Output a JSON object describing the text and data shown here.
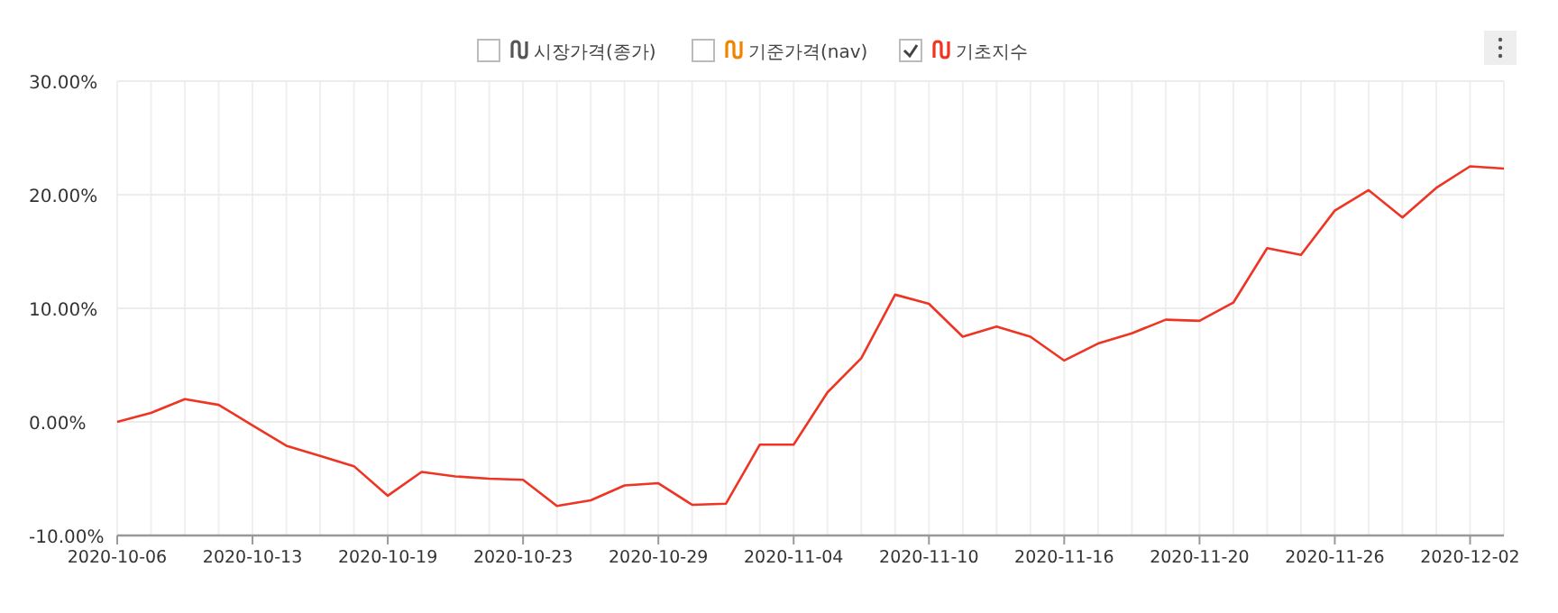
{
  "chart_data": {
    "type": "line",
    "categories": [
      "2020-10-06",
      null,
      null,
      null,
      "2020-10-13",
      null,
      null,
      null,
      "2020-10-19",
      null,
      null,
      null,
      "2020-10-23",
      null,
      null,
      null,
      "2020-10-29",
      null,
      null,
      null,
      "2020-11-04",
      null,
      null,
      null,
      "2020-11-10",
      null,
      null,
      null,
      "2020-11-16",
      null,
      null,
      null,
      "2020-11-20",
      null,
      null,
      null,
      "2020-11-26",
      null,
      null,
      null,
      "2020-12-02",
      null
    ],
    "series": [
      {
        "name": "시장가격(종가)",
        "color": "#555555",
        "values": [
          null,
          null,
          null,
          null,
          null,
          null,
          null,
          null,
          null,
          null,
          null,
          null,
          null,
          null,
          null,
          null,
          null,
          null,
          null,
          null,
          null,
          null,
          null,
          null,
          null,
          null,
          null,
          null,
          null,
          null,
          null,
          null,
          null,
          null,
          null,
          null,
          null,
          null,
          null,
          null,
          null,
          null
        ]
      },
      {
        "name": "기준가격(nav)",
        "color": "#f08300",
        "values": [
          null,
          null,
          null,
          null,
          null,
          null,
          null,
          null,
          null,
          null,
          null,
          null,
          null,
          null,
          null,
          null,
          null,
          null,
          null,
          null,
          null,
          null,
          null,
          null,
          null,
          null,
          null,
          null,
          null,
          null,
          null,
          null,
          null,
          null,
          null,
          null,
          null,
          null,
          null,
          null,
          null,
          null
        ]
      },
      {
        "name": "기초지수",
        "color": "#ee3524",
        "values": [
          0.0,
          0.8,
          2.0,
          1.5,
          -0.3,
          -2.1,
          -3.0,
          -3.9,
          -6.5,
          -4.4,
          -4.8,
          -5.0,
          -5.1,
          -7.4,
          -6.9,
          -5.6,
          -5.4,
          -7.3,
          -7.2,
          -2.0,
          -2.0,
          2.6,
          5.6,
          11.2,
          10.4,
          7.5,
          8.4,
          7.5,
          5.4,
          6.9,
          7.8,
          9.0,
          8.9,
          10.5,
          15.3,
          14.7,
          18.6,
          20.4,
          18.0,
          20.6,
          22.5,
          22.3
        ]
      }
    ],
    "ylim": [
      -10,
      30
    ],
    "yticks": [
      {
        "value": -10,
        "label": "-10.00%"
      },
      {
        "value": 0,
        "label": "0.00%"
      },
      {
        "value": 10,
        "label": "10.00%"
      },
      {
        "value": 20,
        "label": "20.00%"
      },
      {
        "value": 30,
        "label": "30.00%"
      }
    ],
    "grid": true,
    "legend": "top",
    "marker": "none",
    "line_style": "solid"
  }
}
